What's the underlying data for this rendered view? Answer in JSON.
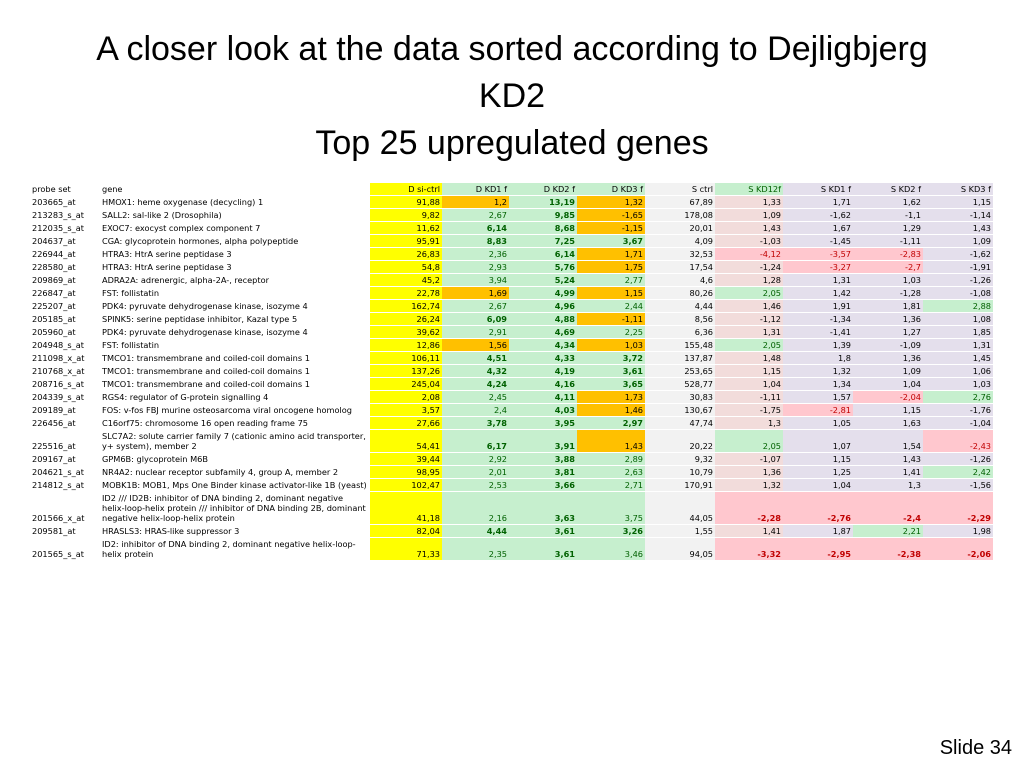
{
  "title": {
    "line1": "A closer look at the data sorted according to Dejligbjerg",
    "line2": "KD2",
    "line3": "Top 25 upregulated genes"
  },
  "headers": [
    "probe set",
    "gene",
    "D si-ctrl",
    "D KD1 f",
    "D KD2 f",
    "D KD3 f",
    "S ctrl",
    "S KD12f",
    "S KD1 f",
    "S KD2 f",
    "S KD3 f"
  ],
  "rows": [
    {
      "probe": "203665_at",
      "gene": "HMOX1: heme oxygenase (decycling) 1",
      "v": [
        "91,88",
        "1,2",
        "13,19",
        "1,32",
        "67,89",
        "1,33",
        "1,71",
        "1,62",
        "1,15"
      ]
    },
    {
      "probe": "213283_s_at",
      "gene": "SALL2: sal-like 2 (Drosophila)",
      "v": [
        "9,82",
        "2,67",
        "9,85",
        "-1,65",
        "178,08",
        "1,09",
        "-1,62",
        "-1,1",
        "-1,14"
      ]
    },
    {
      "probe": "212035_s_at",
      "gene": "EXOC7: exocyst complex component 7",
      "v": [
        "11,62",
        "6,14",
        "8,68",
        "-1,15",
        "20,01",
        "1,43",
        "1,67",
        "1,29",
        "1,43"
      ]
    },
    {
      "probe": "204637_at",
      "gene": "CGA: glycoprotein hormones, alpha polypeptide",
      "v": [
        "95,91",
        "8,83",
        "7,25",
        "3,67",
        "4,09",
        "-1,03",
        "-1,45",
        "-1,11",
        "1,09"
      ]
    },
    {
      "probe": "226944_at",
      "gene": "HTRA3: HtrA serine peptidase 3",
      "v": [
        "26,83",
        "2,36",
        "6,14",
        "1,71",
        "32,53",
        "-4,12",
        "-3,57",
        "-2,83",
        "-1,62"
      ]
    },
    {
      "probe": "228580_at",
      "gene": "HTRA3: HtrA serine peptidase 3",
      "v": [
        "54,8",
        "2,93",
        "5,76",
        "1,75",
        "17,54",
        "-1,24",
        "-3,27",
        "-2,7",
        "-1,91"
      ]
    },
    {
      "probe": "209869_at",
      "gene": "ADRA2A: adrenergic, alpha-2A-, receptor",
      "v": [
        "45,2",
        "3,94",
        "5,24",
        "2,77",
        "4,6",
        "1,28",
        "1,31",
        "1,03",
        "-1,26"
      ]
    },
    {
      "probe": "226847_at",
      "gene": "FST: follistatin",
      "v": [
        "22,78",
        "1,69",
        "4,99",
        "1,15",
        "80,26",
        "2,05",
        "1,42",
        "-1,28",
        "-1,08"
      ]
    },
    {
      "probe": "225207_at",
      "gene": "PDK4: pyruvate dehydrogenase kinase, isozyme 4",
      "v": [
        "162,74",
        "2,67",
        "4,96",
        "2,44",
        "4,44",
        "1,46",
        "1,91",
        "1,81",
        "2,88"
      ]
    },
    {
      "probe": "205185_at",
      "gene": "SPINK5: serine peptidase inhibitor, Kazal type 5",
      "v": [
        "26,24",
        "6,09",
        "4,88",
        "-1,11",
        "8,56",
        "-1,12",
        "-1,34",
        "1,36",
        "1,08"
      ]
    },
    {
      "probe": "205960_at",
      "gene": "PDK4: pyruvate dehydrogenase kinase, isozyme 4",
      "v": [
        "39,62",
        "2,91",
        "4,69",
        "2,25",
        "6,36",
        "1,31",
        "-1,41",
        "1,27",
        "1,85"
      ]
    },
    {
      "probe": "204948_s_at",
      "gene": "FST: follistatin",
      "v": [
        "12,86",
        "1,56",
        "4,34",
        "1,03",
        "155,48",
        "2,05",
        "1,39",
        "-1,09",
        "1,31"
      ]
    },
    {
      "probe": "211098_x_at",
      "gene": "TMCO1: transmembrane and coiled-coil domains 1",
      "v": [
        "106,11",
        "4,51",
        "4,33",
        "3,72",
        "137,87",
        "1,48",
        "1,8",
        "1,36",
        "1,45"
      ]
    },
    {
      "probe": "210768_x_at",
      "gene": "TMCO1: transmembrane and coiled-coil domains 1",
      "v": [
        "137,26",
        "4,32",
        "4,19",
        "3,61",
        "253,65",
        "1,15",
        "1,32",
        "1,09",
        "1,06"
      ]
    },
    {
      "probe": "208716_s_at",
      "gene": "TMCO1: transmembrane and coiled-coil domains 1",
      "v": [
        "245,04",
        "4,24",
        "4,16",
        "3,65",
        "528,77",
        "1,04",
        "1,34",
        "1,04",
        "1,03"
      ]
    },
    {
      "probe": "204339_s_at",
      "gene": "RGS4: regulator of G-protein signalling 4",
      "v": [
        "2,08",
        "2,45",
        "4,11",
        "1,73",
        "30,83",
        "-1,11",
        "1,57",
        "-2,04",
        "2,76"
      ]
    },
    {
      "probe": "209189_at",
      "gene": "FOS: v-fos FBJ murine osteosarcoma viral oncogene homolog",
      "v": [
        "3,57",
        "2,4",
        "4,03",
        "1,46",
        "130,67",
        "-1,75",
        "-2,81",
        "1,15",
        "-1,76"
      ]
    },
    {
      "probe": "226456_at",
      "gene": "C16orf75: chromosome 16 open reading frame 75",
      "v": [
        "27,66",
        "3,78",
        "3,95",
        "2,97",
        "47,74",
        "1,3",
        "1,05",
        "1,63",
        "-1,04"
      ]
    },
    {
      "probe": "225516_at",
      "gene": "SLC7A2: solute carrier family 7 (cationic amino acid transporter, y+ system), member 2",
      "v": [
        "54,41",
        "6,17",
        "3,91",
        "1,43",
        "20,22",
        "2,05",
        "1,07",
        "1,54",
        "-2,43"
      ]
    },
    {
      "probe": "209167_at",
      "gene": "GPM6B: glycoprotein M6B",
      "v": [
        "39,44",
        "2,92",
        "3,88",
        "2,89",
        "9,32",
        "-1,07",
        "1,15",
        "1,43",
        "-1,26"
      ]
    },
    {
      "probe": "204621_s_at",
      "gene": "NR4A2: nuclear receptor subfamily 4, group A, member 2",
      "v": [
        "98,95",
        "2,01",
        "3,81",
        "2,63",
        "10,79",
        "1,36",
        "1,25",
        "1,41",
        "2,42"
      ]
    },
    {
      "probe": "214812_s_at",
      "gene": "MOBK1B: MOB1, Mps One Binder kinase activator-like 1B (yeast)",
      "v": [
        "102,47",
        "2,53",
        "3,66",
        "2,71",
        "170,91",
        "1,32",
        "1,04",
        "1,3",
        "-1,56"
      ]
    },
    {
      "probe": "201566_x_at",
      "gene": "ID2 /// ID2B: inhibitor of DNA binding 2, dominant negative helix-loop-helix protein /// inhibitor of DNA binding 2B, dominant negative helix-loop-helix protein",
      "v": [
        "41,18",
        "2,16",
        "3,63",
        "3,75",
        "44,05",
        "-2,28",
        "-2,76",
        "-2,4",
        "-2,29"
      ]
    },
    {
      "probe": "209581_at",
      "gene": "HRASLS3: HRAS-like suppressor 3",
      "v": [
        "82,04",
        "4,44",
        "3,61",
        "3,26",
        "1,55",
        "1,41",
        "1,87",
        "2,21",
        "1,98"
      ]
    },
    {
      "probe": "201565_s_at",
      "gene": "ID2: inhibitor of DNA binding 2, dominant negative helix-loop-helix protein",
      "v": [
        "71,33",
        "2,35",
        "3,61",
        "3,46",
        "94,05",
        "-3,32",
        "-2,95",
        "-2,38",
        "-2,06"
      ]
    }
  ],
  "slide_number": "Slide 34"
}
